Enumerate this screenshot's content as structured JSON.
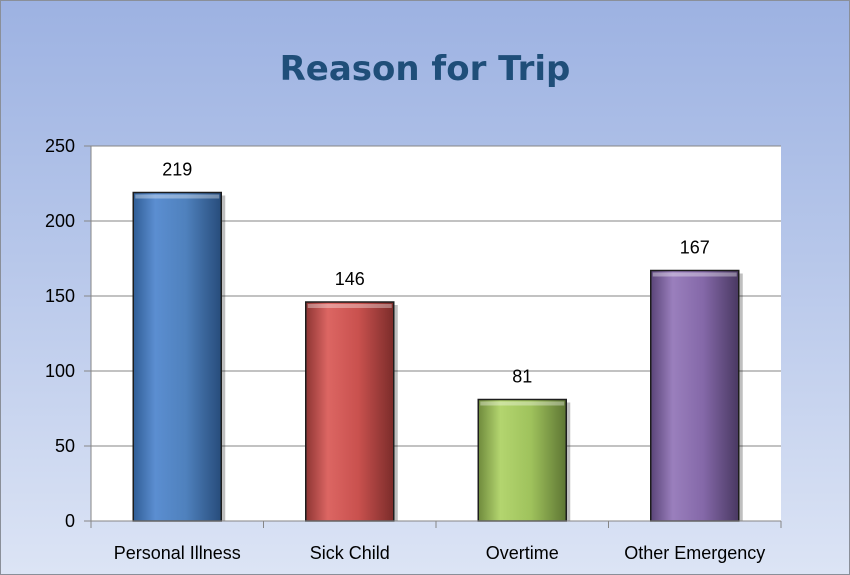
{
  "chart_data": {
    "type": "bar",
    "title": "Reason for Trip",
    "categories": [
      "Personal Illness",
      "Sick Child",
      "Overtime",
      "Other Emergency"
    ],
    "values": [
      219,
      146,
      81,
      167
    ],
    "data_labels": [
      "219",
      "146",
      "81",
      "167"
    ],
    "xlabel": "",
    "ylabel": "",
    "ylim": [
      0,
      250
    ],
    "yticks": [
      0,
      50,
      100,
      150,
      200,
      250
    ],
    "grid": true,
    "legend": "none",
    "colors": [
      "#4f81bd",
      "#c0504d",
      "#9bbb59",
      "#8064a2"
    ]
  }
}
